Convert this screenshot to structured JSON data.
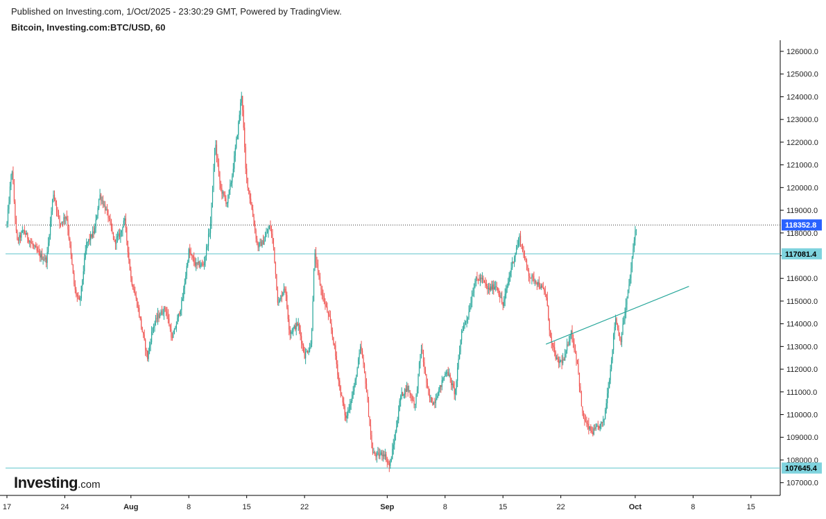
{
  "header": {
    "published": "Published on Investing.com, 1/Oct/2025 - 23:30:29 GMT, Powered by TradingView.",
    "symbol": "Bitcoin, Investing.com:BTC/USD, 60"
  },
  "logo": {
    "main": "Investing",
    "suffix": ".com"
  },
  "colors": {
    "up": "#26a69a",
    "down": "#ef5350",
    "hline": "#5fc4cc",
    "trend": "#26a69a",
    "last_price_bg": "#2962ff",
    "level_bg": "#7fd3de",
    "axis": "#000000"
  },
  "chart_data": {
    "type": "candlestick",
    "ylim": [
      107000,
      126000
    ],
    "y_ticks": [
      126000,
      125000,
      124000,
      123000,
      122000,
      121000,
      120000,
      119000,
      118000,
      117000,
      116000,
      115000,
      114000,
      113000,
      112000,
      111000,
      110000,
      109000,
      108000,
      107000
    ],
    "y_tick_labels": [
      "126000.0",
      "125000.0",
      "124000.0",
      "123000.0",
      "122000.0",
      "121000.0",
      "120000.0",
      "119000.0",
      "118000.0",
      "117000.0",
      "116000.0",
      "115000.0",
      "114000.0",
      "113000.0",
      "112000.0",
      "111000.0",
      "110000.0",
      "109000.0",
      "108000.0",
      "107000.0"
    ],
    "x_range_days": [
      -0.2,
      53.2
    ],
    "x_ticks": [
      {
        "day": 0,
        "label": "17"
      },
      {
        "day": 7,
        "label": "24"
      },
      {
        "day": 15,
        "label": "Aug"
      },
      {
        "day": 22,
        "label": "8"
      },
      {
        "day": 29,
        "label": "15"
      },
      {
        "day": 36,
        "label": "22"
      },
      {
        "day": 46,
        "label": "Sep"
      },
      {
        "day": 53,
        "label": "8"
      },
      {
        "day": 60,
        "label": "15"
      },
      {
        "day": 67,
        "label": "22"
      },
      {
        "day": 76,
        "label": "Oct"
      },
      {
        "day": 83,
        "label": "8"
      },
      {
        "day": 90,
        "label": "15"
      }
    ],
    "price_path": [
      [
        0,
        118400
      ],
      [
        0.6,
        120900
      ],
      [
        1.2,
        117600
      ],
      [
        2,
        118100
      ],
      [
        3,
        117500
      ],
      [
        4,
        117000
      ],
      [
        4.8,
        116800
      ],
      [
        5.6,
        119800
      ],
      [
        6.4,
        118400
      ],
      [
        7.2,
        118800
      ],
      [
        8.2,
        115500
      ],
      [
        8.8,
        114900
      ],
      [
        9.6,
        117500
      ],
      [
        10.6,
        118100
      ],
      [
        11.2,
        119700
      ],
      [
        12.2,
        118800
      ],
      [
        13,
        117600
      ],
      [
        13.8,
        118000
      ],
      [
        14.2,
        118700
      ],
      [
        15,
        116000
      ],
      [
        15.8,
        114800
      ],
      [
        16.4,
        113600
      ],
      [
        17,
        112500
      ],
      [
        17.6,
        113800
      ],
      [
        18.2,
        114300
      ],
      [
        19.2,
        114700
      ],
      [
        20,
        113300
      ],
      [
        21.2,
        115000
      ],
      [
        22,
        117200
      ],
      [
        22.8,
        116600
      ],
      [
        23.8,
        116600
      ],
      [
        24.6,
        118300
      ],
      [
        25.2,
        122000
      ],
      [
        25.8,
        120000
      ],
      [
        26.6,
        119300
      ],
      [
        27.2,
        120400
      ],
      [
        28,
        122800
      ],
      [
        28.4,
        124200
      ],
      [
        28.9,
        120600
      ],
      [
        29.6,
        119100
      ],
      [
        30.3,
        117400
      ],
      [
        31,
        117600
      ],
      [
        31.8,
        118300
      ],
      [
        32.2,
        117600
      ],
      [
        32.8,
        114800
      ],
      [
        33.6,
        115700
      ],
      [
        34.2,
        113600
      ],
      [
        35.2,
        114000
      ],
      [
        36,
        112600
      ],
      [
        36.8,
        113100
      ],
      [
        37.2,
        117100
      ],
      [
        38,
        115500
      ],
      [
        39,
        114200
      ],
      [
        39.6,
        113000
      ],
      [
        40.2,
        111300
      ],
      [
        41,
        109800
      ],
      [
        42,
        111200
      ],
      [
        42.8,
        113000
      ],
      [
        43.4,
        111400
      ],
      [
        44.2,
        108300
      ],
      [
        44.8,
        108200
      ],
      [
        45.6,
        108300
      ],
      [
        46.3,
        107700
      ],
      [
        47,
        109200
      ],
      [
        47.6,
        110800
      ],
      [
        48.4,
        111200
      ],
      [
        49.4,
        110400
      ],
      [
        50.1,
        113000
      ],
      [
        51,
        110800
      ],
      [
        51.6,
        110500
      ],
      [
        52.4,
        111200
      ],
      [
        53.2,
        112000
      ],
      [
        54.2,
        110900
      ],
      [
        55,
        113700
      ],
      [
        55.8,
        114400
      ],
      [
        56.6,
        115900
      ],
      [
        57.4,
        116000
      ],
      [
        58.2,
        115500
      ],
      [
        59.2,
        115700
      ],
      [
        60,
        114800
      ],
      [
        61,
        116500
      ],
      [
        62,
        117800
      ],
      [
        62.6,
        116900
      ],
      [
        63.2,
        116100
      ],
      [
        64,
        115900
      ],
      [
        65.2,
        115300
      ],
      [
        65.8,
        113200
      ],
      [
        66.6,
        112300
      ],
      [
        67.4,
        112400
      ],
      [
        68.2,
        113700
      ],
      [
        69,
        112300
      ],
      [
        69.6,
        110000
      ],
      [
        70.2,
        109500
      ],
      [
        70.8,
        109200
      ],
      [
        71.4,
        109400
      ],
      [
        72.2,
        109700
      ],
      [
        73,
        112000
      ],
      [
        73.6,
        114300
      ],
      [
        74.2,
        113200
      ],
      [
        74.8,
        114600
      ],
      [
        75.4,
        116100
      ],
      [
        76,
        118100
      ],
      [
        76.2,
        118350
      ]
    ],
    "horizontal_levels": [
      {
        "price": 117081.4,
        "label": "117081.4",
        "style": "solid"
      },
      {
        "price": 107645.4,
        "label": "107645.4",
        "style": "solid"
      },
      {
        "price": 118352.8,
        "label": "118352.8",
        "style": "dotted"
      }
    ],
    "trendline": {
      "from": {
        "day": 65.2,
        "price": 113100
      },
      "to": {
        "day": 82.5,
        "price": 115650
      }
    }
  }
}
